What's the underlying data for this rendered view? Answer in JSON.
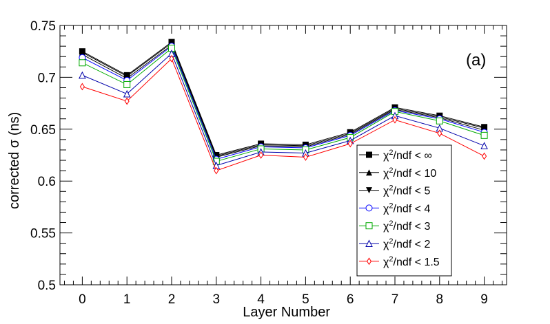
{
  "chart_data": {
    "type": "line",
    "title": "",
    "annotation": "(a)",
    "xlabel": "Layer Number",
    "ylabel_prefix": "corrected ",
    "ylabel_symbol": "σ",
    "ylabel_suffix": " (ns)",
    "xlim": [
      -0.5,
      9.5
    ],
    "ylim": [
      0.5,
      0.75
    ],
    "x_ticks": [
      0,
      1,
      2,
      3,
      4,
      5,
      6,
      7,
      8,
      9
    ],
    "x_tick_labels": [
      "0",
      "1",
      "2",
      "3",
      "4",
      "5",
      "6",
      "7",
      "8",
      "9"
    ],
    "y_ticks": [
      0.5,
      0.55,
      0.6,
      0.65,
      0.7,
      0.75
    ],
    "y_tick_labels": [
      "0.5",
      "0.55",
      "0.6",
      "0.65",
      "0.7",
      "0.75"
    ],
    "grid": false,
    "legend_position": "right",
    "x": [
      0,
      1,
      2,
      3,
      4,
      5,
      6,
      7,
      8,
      9
    ],
    "series": [
      {
        "name": "χ²/ndf < ∞",
        "legend_base": "χ",
        "legend_sup": "2",
        "legend_rest": "/ndf < ∞",
        "color": "#000000",
        "marker": "square-filled",
        "values": [
          0.725,
          0.702,
          0.734,
          0.625,
          0.636,
          0.635,
          0.647,
          0.671,
          0.663,
          0.652
        ]
      },
      {
        "name": "χ²/ndf < 10",
        "legend_base": "χ",
        "legend_sup": "2",
        "legend_rest": "/ndf < 10",
        "color": "#000000",
        "marker": "triangle-up-filled",
        "values": [
          0.724,
          0.701,
          0.733,
          0.624,
          0.635,
          0.634,
          0.646,
          0.67,
          0.662,
          0.651
        ]
      },
      {
        "name": "χ²/ndf < 5",
        "legend_base": "χ",
        "legend_sup": "2",
        "legend_rest": "/ndf < 5",
        "color": "#000000",
        "marker": "triangle-down-filled",
        "values": [
          0.722,
          0.699,
          0.731,
          0.623,
          0.634,
          0.633,
          0.645,
          0.669,
          0.661,
          0.649
        ]
      },
      {
        "name": "χ²/ndf < 4",
        "legend_base": "χ",
        "legend_sup": "2",
        "legend_rest": "/ndf < 4",
        "color": "#0000ff",
        "marker": "circle-open",
        "values": [
          0.719,
          0.697,
          0.73,
          0.621,
          0.633,
          0.632,
          0.644,
          0.668,
          0.66,
          0.647
        ]
      },
      {
        "name": "χ²/ndf < 3",
        "legend_base": "χ",
        "legend_sup": "2",
        "legend_rest": "/ndf < 3",
        "color": "#00aa00",
        "marker": "square-open",
        "values": [
          0.714,
          0.693,
          0.728,
          0.619,
          0.631,
          0.63,
          0.642,
          0.667,
          0.658,
          0.644
        ]
      },
      {
        "name": "χ²/ndf < 2",
        "legend_base": "χ",
        "legend_sup": "2",
        "legend_rest": "/ndf < 2",
        "color": "#0000aa",
        "marker": "triangle-up-open",
        "values": [
          0.702,
          0.684,
          0.723,
          0.615,
          0.628,
          0.627,
          0.639,
          0.663,
          0.651,
          0.634
        ]
      },
      {
        "name": "χ²/ndf < 1.5",
        "legend_base": "χ",
        "legend_sup": "2",
        "legend_rest": "/ndf < 1.5",
        "color": "#ff0000",
        "marker": "diamond-open",
        "values": [
          0.691,
          0.677,
          0.718,
          0.61,
          0.625,
          0.623,
          0.636,
          0.659,
          0.646,
          0.624
        ]
      }
    ]
  }
}
